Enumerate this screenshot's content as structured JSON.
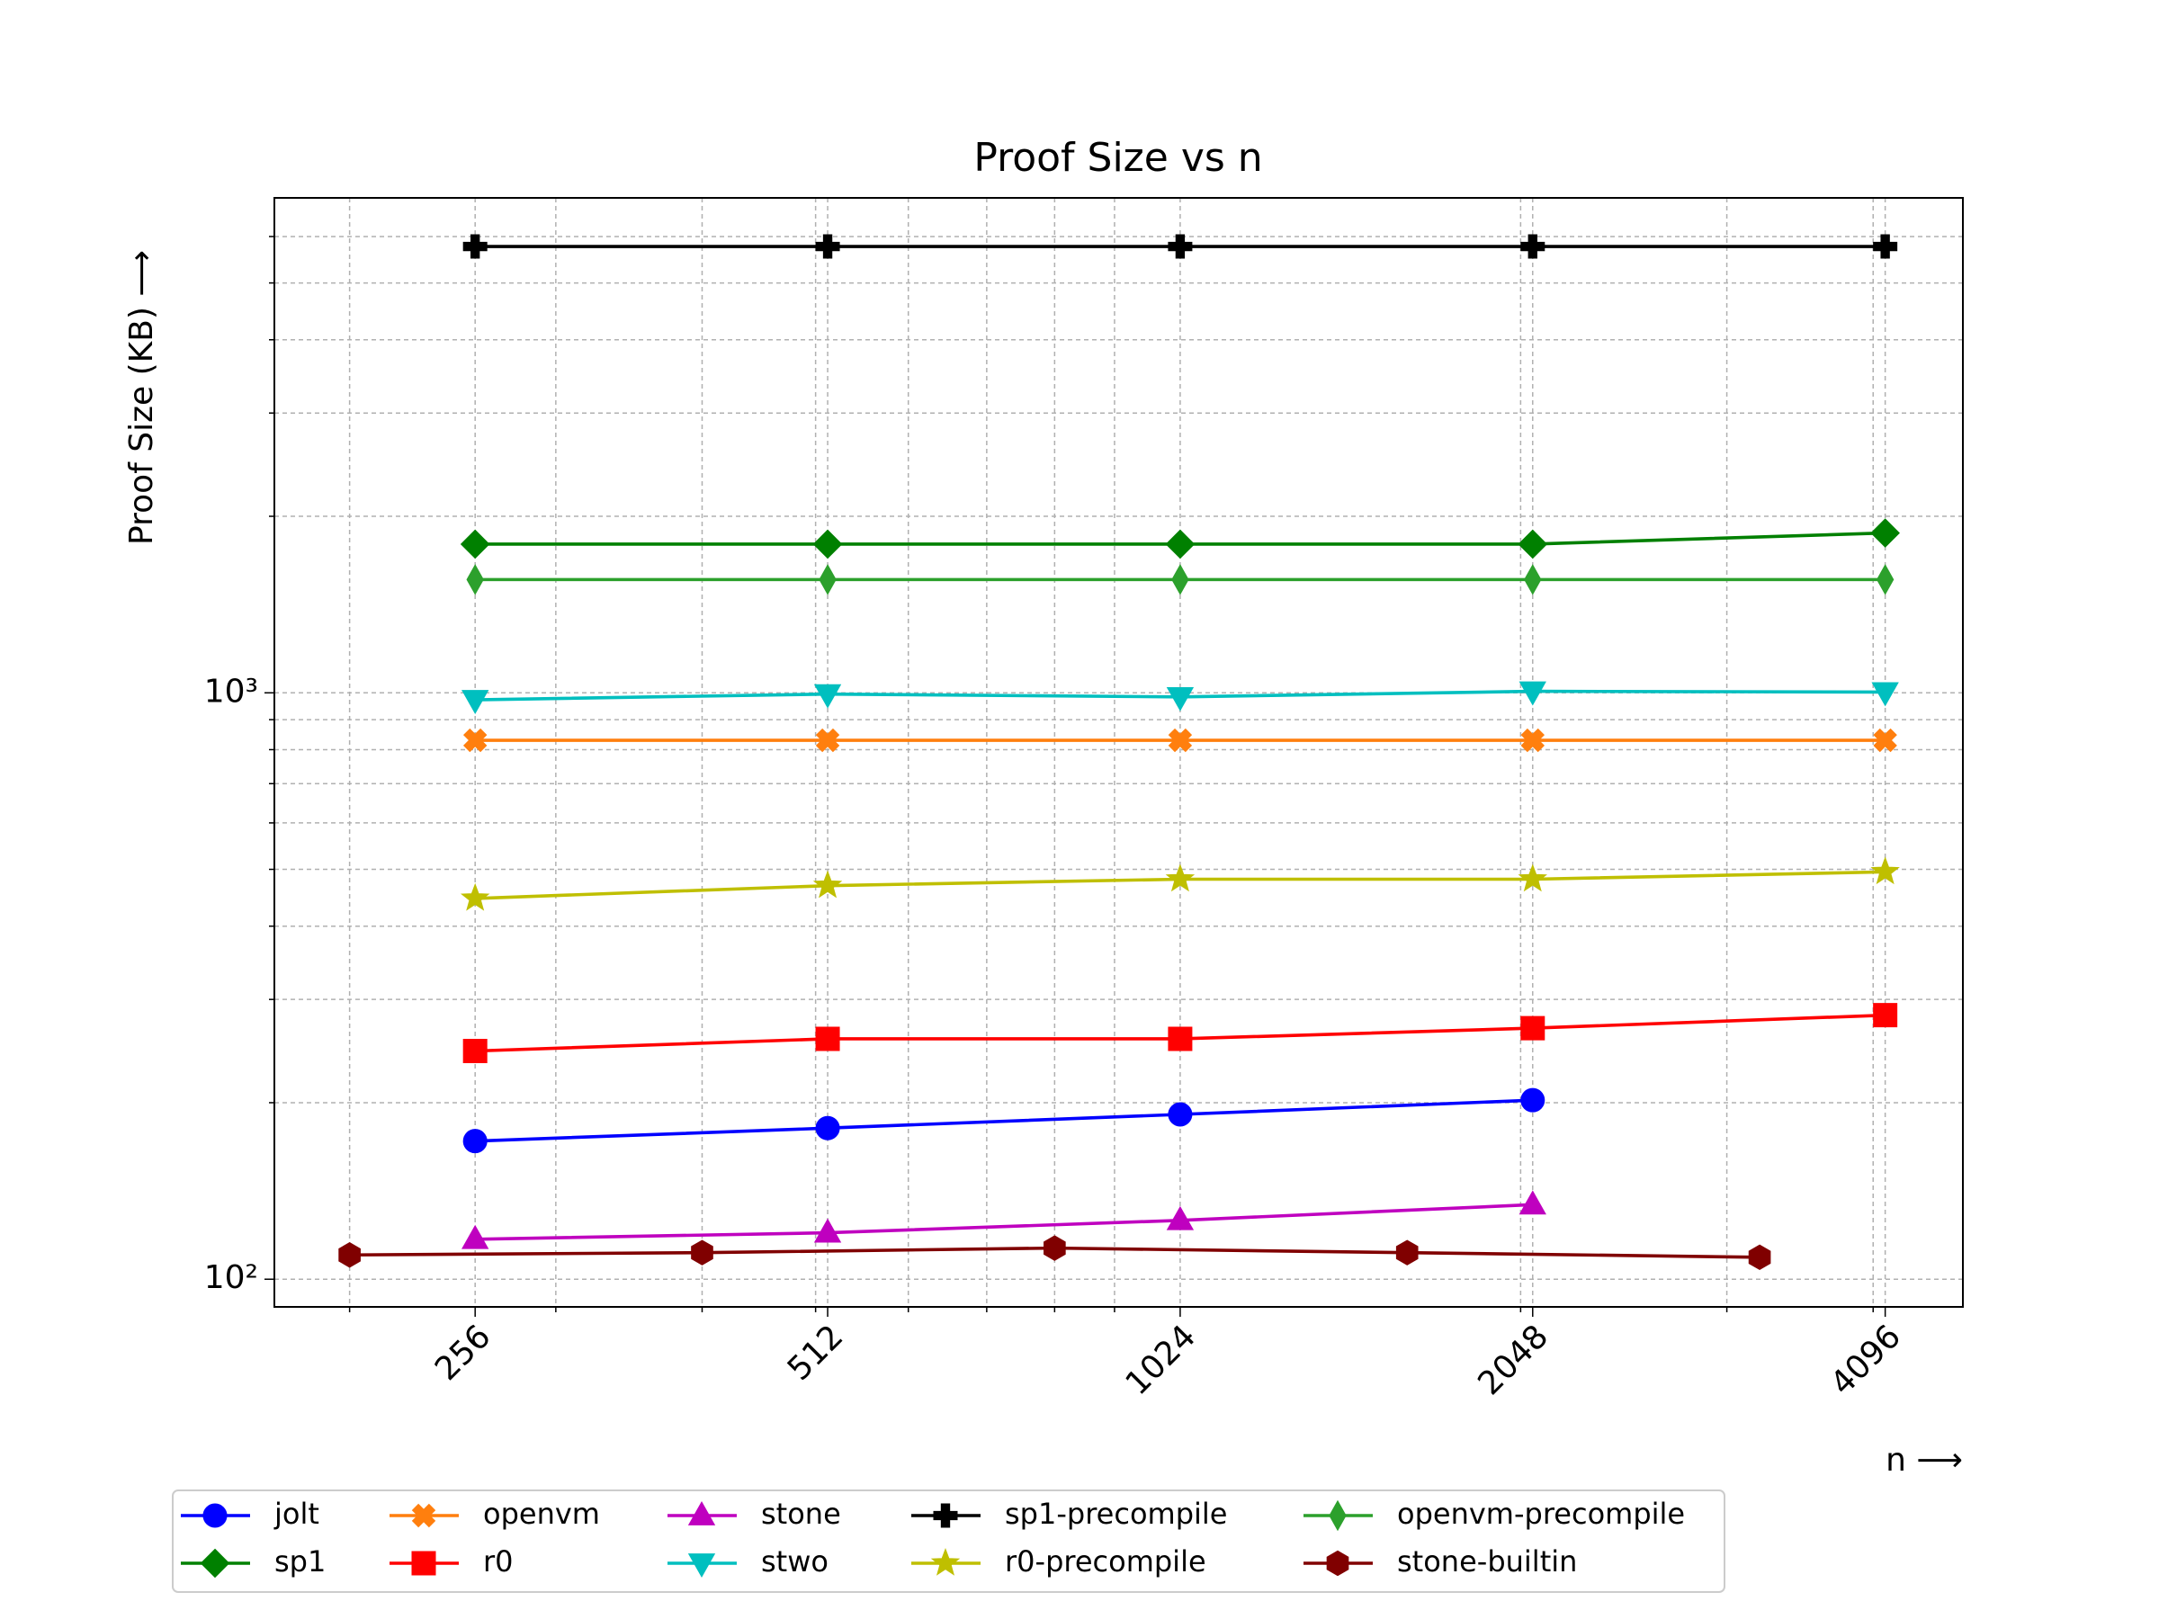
{
  "chart_data": {
    "type": "line",
    "title": "Proof Size vs n",
    "x_label": "n ⟶",
    "y_label": "Proof Size (KB) ⟶",
    "x_scale": "log",
    "y_scale": "log",
    "grid": true,
    "legend": "below",
    "xlim": [
      172.5,
      4772
    ],
    "ylim": [
      89.7,
      6983
    ],
    "xticks": [
      256,
      512,
      1024,
      2048,
      4096
    ],
    "xminorticks": [
      200,
      300,
      400,
      500,
      600,
      700,
      800,
      900,
      2000,
      3000,
      4000
    ],
    "yticks": [
      {
        "value": 100,
        "label": "10²"
      },
      {
        "value": 1000,
        "label": "10³"
      }
    ],
    "yminorticks": [
      200,
      300,
      400,
      500,
      600,
      700,
      800,
      900,
      2000,
      3000,
      4000,
      5000,
      6000
    ],
    "series": [
      {
        "name": "jolt",
        "color": "#0000ff",
        "marker": "circle",
        "x": [
          256,
          512,
          1024,
          2048
        ],
        "values": [
          172,
          181,
          191,
          202
        ]
      },
      {
        "name": "sp1",
        "color": "#008000",
        "marker": "diamond",
        "x": [
          256,
          512,
          1024,
          2048,
          4096
        ],
        "values": [
          1793,
          1793,
          1793,
          1793,
          1873
        ]
      },
      {
        "name": "openvm",
        "color": "#ff7f0e",
        "marker": "xfilled",
        "x": [
          256,
          512,
          1024,
          2048,
          4096
        ],
        "values": [
          830,
          830,
          830,
          830,
          830
        ]
      },
      {
        "name": "r0",
        "color": "#ff0000",
        "marker": "square",
        "x": [
          256,
          512,
          1024,
          2048,
          4096
        ],
        "values": [
          245,
          257,
          257,
          268,
          282
        ]
      },
      {
        "name": "stone",
        "color": "#bf00bf",
        "marker": "triangle-up",
        "x": [
          256,
          512,
          1024,
          2048
        ],
        "values": [
          117,
          120,
          126,
          134
        ]
      },
      {
        "name": "stwo",
        "color": "#00bfbf",
        "marker": "triangle-down",
        "x": [
          256,
          512,
          1024,
          2048,
          4096
        ],
        "values": [
          973,
          995,
          984,
          1006,
          1003
        ]
      },
      {
        "name": "sp1-precompile",
        "color": "#000000",
        "marker": "plus",
        "x": [
          256,
          512,
          1024,
          2048,
          4096
        ],
        "values": [
          5770,
          5770,
          5770,
          5770,
          5770
        ]
      },
      {
        "name": "r0-precompile",
        "color": "#bfbf00",
        "marker": "star",
        "x": [
          256,
          512,
          1024,
          2048,
          4096
        ],
        "values": [
          446,
          469,
          481,
          481,
          495
        ]
      },
      {
        "name": "openvm-precompile",
        "color": "#2ca02c",
        "marker": "thin-diamond",
        "x": [
          256,
          512,
          1024,
          2048,
          4096
        ],
        "values": [
          1560,
          1560,
          1560,
          1560,
          1560
        ]
      },
      {
        "name": "stone-builtin",
        "color": "#800000",
        "marker": "hexagon",
        "x": [
          200,
          400,
          800,
          1600,
          3200
        ],
        "values": [
          110,
          111,
          113,
          111,
          109
        ]
      }
    ]
  }
}
